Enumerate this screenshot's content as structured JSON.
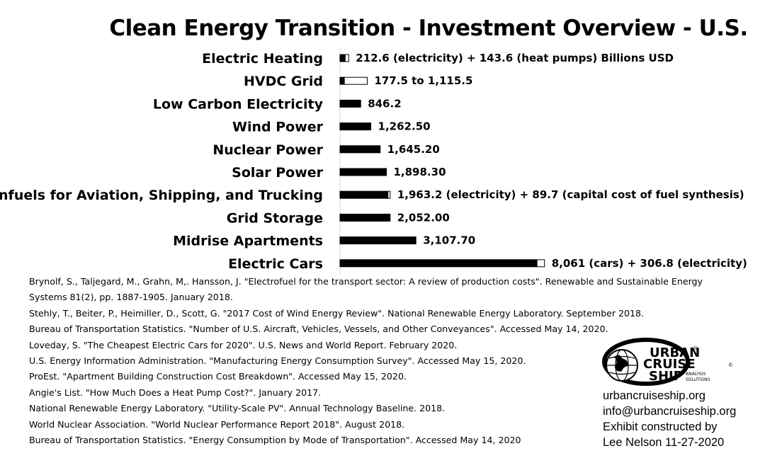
{
  "header": {
    "title": "Clean Energy Transition - Investment Overview - U.S."
  },
  "chart_data": {
    "type": "bar",
    "orientation": "horizontal-stacked",
    "title": "Clean Energy Transition - Investment Overview - U.S.",
    "xlabel": "",
    "ylabel": "",
    "grid": false,
    "legend": "none",
    "unit_label": "Billions USD",
    "categories": [
      "Electric Heating",
      "HVDC Grid",
      "Low Carbon Electricity",
      "Wind Power",
      "Nuclear Power",
      "Solar Power",
      "Synfuels for Aviation, Shipping, and Trucking",
      "Grid Storage",
      "Midrise Apartments",
      "Electric Cars"
    ],
    "series": [
      {
        "values": [
          212.6,
          177.5,
          846.2,
          1262.5,
          1645.2,
          1898.3,
          1963.2,
          2052.0,
          3107.7,
          8061
        ],
        "color": "#000000"
      },
      {
        "values": [
          143.6,
          938.0,
          0,
          0,
          0,
          0,
          89.7,
          0,
          0,
          306.8
        ],
        "color": "#ffffff"
      }
    ],
    "data_labels": [
      "212.6 (electricity) + 143.6 (heat pumps) Billions USD",
      "177.5 to 1,115.5",
      "846.2",
      "1,262.50",
      "1,645.20",
      "1,898.30",
      "1,963.2 (electricity) + 89.7 (capital cost of fuel synthesis)",
      "2,052.00",
      "3,107.70",
      "8,061 (cars) + 306.8 (electricity)"
    ]
  },
  "sources": [
    "Brynolf, S., Taljegard, M., Grahn, M,. Hansson, J. \"Electrofuel for the transport sector: A review of production costs\". Renewable and Sustainable Energy Systems 81(2), pp. 1887-1905. January 2018.",
    "Stehly, T., Beiter, P., Heimiller, D., Scott, G. \"2017 Cost of Wind Energy Review\". National Renewable Energy Laboratory. September 2018.",
    "Bureau of Transportation Statistics. \"Number of U.S. Aircraft, Vehicles, Vessels, and Other Conveyances\". Accessed May 14, 2020.",
    "Loveday, S. \"The Cheapest Electric Cars for 2020\". U.S. News and World Report. February 2020.",
    "U.S. Energy Information Administration. \"Manufacturing Energy Consumption Survey\". Accessed May 15, 2020.",
    "ProEst. \"Apartment Building Construction Cost Breakdown\". Accessed May 15, 2020.",
    "Angie's List. \"How Much Does a Heat Pump Cost?\". January 2017.",
    "National Renewable Energy Laboratory. \"Utility-Scale PV\". Annual Technology Baseline. 2018.",
    "World Nuclear Association. \"World Nuclear Performance Report 2018\". August 2018.",
    "Bureau of Transportation Statistics. \"Energy Consumption by Mode of Transportation\". Accessed May 14, 2020"
  ],
  "logo": {
    "line1": "URBAN",
    "line2": "CRUISE",
    "line3": "SHIP",
    "tag1": "ANALYSIS",
    "tag2": "SOLUTIONS",
    "reg": "®",
    "copy": "©"
  },
  "contact": {
    "website": "urbancruiseship.org",
    "email": "info@urbancruiseship.org",
    "credit": "Exhibit constructed by",
    "author_date": "Lee Nelson 11-27-2020"
  }
}
